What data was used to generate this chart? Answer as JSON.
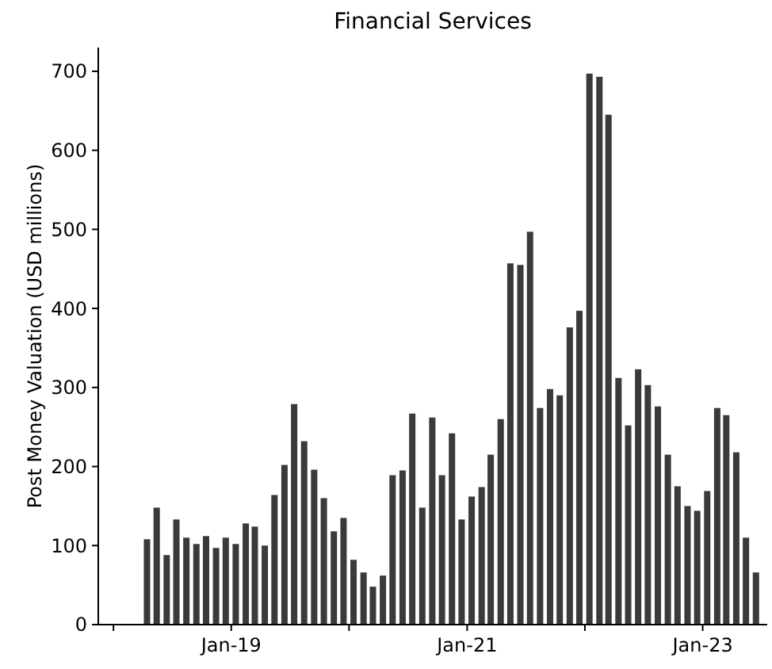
{
  "chart_data": {
    "type": "bar",
    "title": "Financial Services",
    "ylabel": "Post Money Valuation (USD millions)",
    "x": [
      "2018-04-15",
      "2018-05-15",
      "2018-06-15",
      "2018-07-15",
      "2018-08-15",
      "2018-09-15",
      "2018-10-15",
      "2018-11-15",
      "2018-12-15",
      "2019-01-15",
      "2019-02-15",
      "2019-03-15",
      "2019-04-15",
      "2019-05-15",
      "2019-06-15",
      "2019-07-15",
      "2019-08-15",
      "2019-09-15",
      "2019-10-15",
      "2019-11-15",
      "2019-12-15",
      "2020-01-15",
      "2020-02-15",
      "2020-03-15",
      "2020-04-15",
      "2020-05-15",
      "2020-06-15",
      "2020-07-15",
      "2020-08-15",
      "2020-09-15",
      "2020-10-15",
      "2020-11-15",
      "2020-12-15",
      "2021-01-15",
      "2021-02-15",
      "2021-03-15",
      "2021-04-15",
      "2021-05-15",
      "2021-06-15",
      "2021-07-15",
      "2021-08-15",
      "2021-09-15",
      "2021-10-15",
      "2021-11-15",
      "2021-12-15",
      "2022-01-15",
      "2022-02-15",
      "2022-03-15",
      "2022-04-15",
      "2022-05-15",
      "2022-06-15",
      "2022-07-15",
      "2022-08-15",
      "2022-09-15",
      "2022-10-15",
      "2022-11-15",
      "2022-12-15",
      "2023-01-15",
      "2023-02-15",
      "2023-03-15",
      "2023-04-15",
      "2023-05-15",
      "2023-06-15"
    ],
    "values": [
      108,
      148,
      88,
      133,
      110,
      102,
      112,
      97,
      110,
      102,
      128,
      124,
      100,
      164,
      202,
      279,
      232,
      196,
      160,
      118,
      135,
      82,
      66,
      48,
      62,
      189,
      195,
      267,
      148,
      262,
      189,
      242,
      133,
      162,
      174,
      215,
      260,
      457,
      455,
      497,
      274,
      298,
      290,
      376,
      397,
      697,
      693,
      645,
      312,
      252,
      323,
      303,
      276,
      215,
      175,
      150,
      144,
      169,
      274,
      265,
      218,
      110,
      66
    ],
    "color": "#3a3a3a",
    "xlim": [
      "2017-11-15",
      "2023-07-20"
    ],
    "xticks": [
      {
        "value": "2018-01",
        "label": null
      },
      {
        "value": "2019-01",
        "label": "Jan-19"
      },
      {
        "value": "2020-01",
        "label": null
      },
      {
        "value": "2021-01",
        "label": "Jan-21"
      },
      {
        "value": "2022-01",
        "label": null
      },
      {
        "value": "2023-01",
        "label": "Jan-23"
      }
    ],
    "ylim": [
      0,
      730
    ],
    "yticks": [
      0,
      100,
      200,
      300,
      400,
      500,
      600,
      700
    ],
    "grid": false
  }
}
